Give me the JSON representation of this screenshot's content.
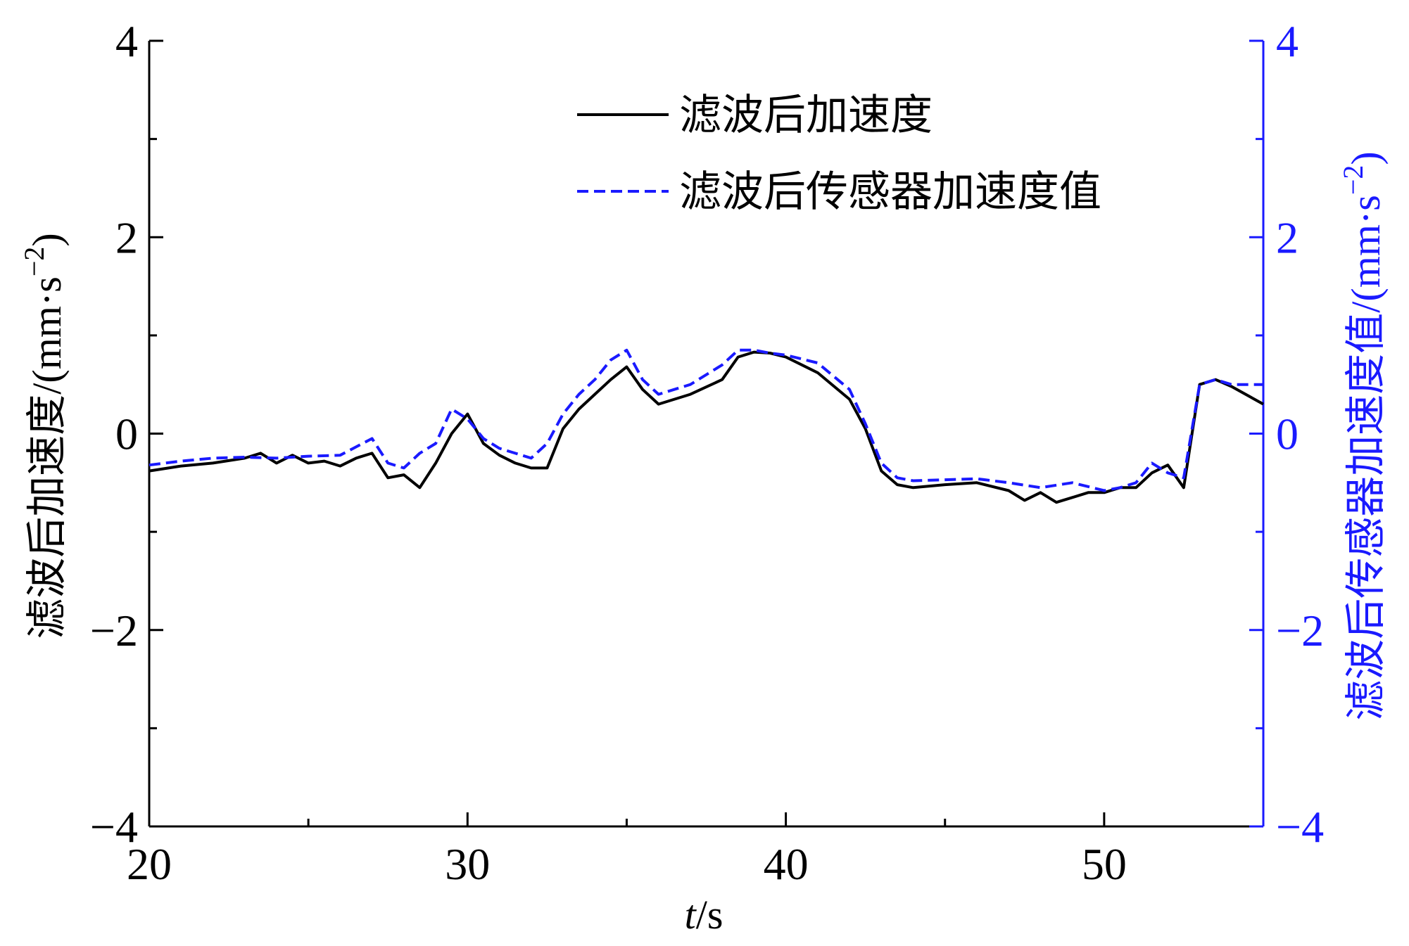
{
  "chart_data": {
    "type": "line",
    "xlabel_italic": "t",
    "xlabel_rest": "/s",
    "ylabel_left_base": "滤波后加速度/(mm·s",
    "ylabel_right_base": "滤波后传感器加速度值/(mm·s",
    "ylabel_exp": "−2",
    "ylabel_close": ")",
    "xlim": [
      20,
      55
    ],
    "ylim_left": [
      -4,
      4
    ],
    "ylim_right": [
      -4,
      4
    ],
    "x_ticks": [
      20,
      30,
      40,
      50
    ],
    "x_tick_labels": [
      "20",
      "30",
      "40",
      "50"
    ],
    "x_minor_ticks": [
      25,
      35,
      45
    ],
    "y_ticks": [
      -4,
      -2,
      0,
      2,
      4
    ],
    "y_tick_labels": [
      "−4",
      "−2",
      "0",
      "2",
      "4"
    ],
    "y_minor_ticks": [
      -3,
      -1,
      1,
      3
    ],
    "legend_position": "top-center",
    "right_axis_color": "#1a1aff",
    "series": [
      {
        "name": "滤波后加速度",
        "color": "#000000",
        "dash": "solid",
        "x": [
          20,
          21,
          22,
          23,
          23.5,
          24,
          24.5,
          25,
          25.5,
          26,
          26.5,
          27,
          27.5,
          28,
          28.5,
          29,
          29.5,
          30,
          30.5,
          31,
          31.5,
          32,
          32.5,
          33,
          33.5,
          34,
          34.5,
          35,
          35.5,
          36,
          37,
          38,
          38.5,
          39,
          39.5,
          40,
          41,
          42,
          42.5,
          43,
          43.5,
          44,
          45,
          46,
          47,
          47.5,
          48,
          48.5,
          49,
          49.5,
          50,
          50.5,
          51,
          51.5,
          52,
          52.5,
          53,
          53.5,
          54,
          55
        ],
        "y": [
          -0.38,
          -0.33,
          -0.3,
          -0.25,
          -0.2,
          -0.3,
          -0.22,
          -0.3,
          -0.28,
          -0.33,
          -0.25,
          -0.2,
          -0.45,
          -0.42,
          -0.55,
          -0.3,
          0.0,
          0.2,
          -0.1,
          -0.22,
          -0.3,
          -0.35,
          -0.35,
          0.05,
          0.25,
          0.4,
          0.55,
          0.68,
          0.45,
          0.3,
          0.4,
          0.55,
          0.78,
          0.83,
          0.82,
          0.78,
          0.62,
          0.35,
          0.05,
          -0.38,
          -0.52,
          -0.55,
          -0.52,
          -0.5,
          -0.58,
          -0.68,
          -0.6,
          -0.7,
          -0.65,
          -0.6,
          -0.6,
          -0.55,
          -0.55,
          -0.4,
          -0.32,
          -0.55,
          0.5,
          0.55,
          0.48,
          0.3
        ]
      },
      {
        "name": "滤波后传感器加速度值",
        "color": "#1a1aff",
        "dash": "dashed",
        "x": [
          20,
          21,
          22,
          23,
          24,
          25,
          26,
          27,
          27.5,
          28,
          28.5,
          29,
          29.5,
          30,
          30.5,
          31,
          31.5,
          32,
          32.5,
          33,
          33.5,
          34,
          34.5,
          35,
          35.5,
          36,
          37,
          38,
          38.5,
          39,
          39.5,
          40,
          41,
          42,
          42.5,
          43,
          43.5,
          44,
          45,
          46,
          47,
          48,
          49,
          50,
          50.5,
          51,
          51.5,
          52,
          52.5,
          53,
          53.5,
          54,
          55
        ],
        "y": [
          -0.32,
          -0.28,
          -0.25,
          -0.24,
          -0.25,
          -0.23,
          -0.22,
          -0.05,
          -0.3,
          -0.35,
          -0.2,
          -0.1,
          0.25,
          0.15,
          -0.05,
          -0.15,
          -0.2,
          -0.25,
          -0.1,
          0.2,
          0.4,
          0.55,
          0.75,
          0.85,
          0.55,
          0.4,
          0.5,
          0.7,
          0.85,
          0.85,
          0.82,
          0.8,
          0.72,
          0.45,
          0.1,
          -0.3,
          -0.45,
          -0.48,
          -0.47,
          -0.46,
          -0.5,
          -0.55,
          -0.5,
          -0.58,
          -0.55,
          -0.5,
          -0.3,
          -0.4,
          -0.45,
          0.5,
          0.55,
          0.5,
          0.5
        ]
      }
    ]
  }
}
